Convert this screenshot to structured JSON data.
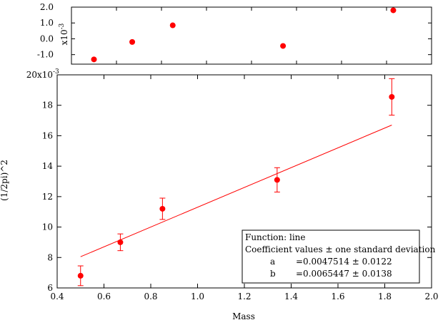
{
  "chart_data": [
    {
      "type": "scatter",
      "panel": "residuals",
      "ylabel": "x10",
      "ylabel_exp": "-3",
      "ylim": [
        -1.6,
        2.0
      ],
      "yticks": [
        2.0,
        1.0,
        0.0,
        -1.0
      ],
      "ytick_labels": [
        "2.0",
        "1.0",
        "0.0",
        "-1.0"
      ],
      "xlim": [
        0.4,
        2.0
      ],
      "color": "#ff0000",
      "points": [
        {
          "x": 0.5,
          "y": -1.3
        },
        {
          "x": 0.67,
          "y": -0.2
        },
        {
          "x": 0.85,
          "y": 0.85
        },
        {
          "x": 1.34,
          "y": -0.45
        },
        {
          "x": 1.83,
          "y": 1.8
        }
      ]
    },
    {
      "type": "scatter",
      "panel": "main",
      "xlabel": "Mass",
      "ylabel": "(1/2pi)^2",
      "xlim": [
        0.4,
        2.0
      ],
      "ylim": [
        6,
        20
      ],
      "xticks": [
        0.4,
        0.6,
        0.8,
        1.0,
        1.2,
        1.4,
        1.6,
        1.8,
        2.0
      ],
      "xtick_labels": [
        "0.4",
        "0.6",
        "0.8",
        "1.0",
        "1.2",
        "1.4",
        "1.6",
        "1.8",
        "2.0"
      ],
      "yticks": [
        6,
        8,
        10,
        12,
        14,
        16,
        18,
        20
      ],
      "ytick_labels": [
        "6",
        "8",
        "10",
        "12",
        "14",
        "16",
        "18",
        "20x10"
      ],
      "ytop_exp": "-3",
      "color": "#ff0000",
      "points": [
        {
          "x": 0.5,
          "y": 6.8,
          "err": 0.65
        },
        {
          "x": 0.67,
          "y": 9.0,
          "err": 0.55
        },
        {
          "x": 0.85,
          "y": 11.2,
          "err": 0.7
        },
        {
          "x": 1.34,
          "y": 13.1,
          "err": 0.8
        },
        {
          "x": 1.83,
          "y": 18.55,
          "err": 1.2
        }
      ],
      "fit_line": {
        "x": [
          0.5,
          1.83
        ],
        "y": [
          8.05,
          16.7
        ]
      },
      "legend": {
        "position": "bottom-right",
        "title": "Function: line",
        "subtitle": "Coefficient values ± one standard deviation",
        "rows": [
          {
            "name": "a",
            "value": "=0.0047514 ± 0.0122"
          },
          {
            "name": "b",
            "value": "=0.0065447 ± 0.0138"
          }
        ]
      }
    }
  ]
}
